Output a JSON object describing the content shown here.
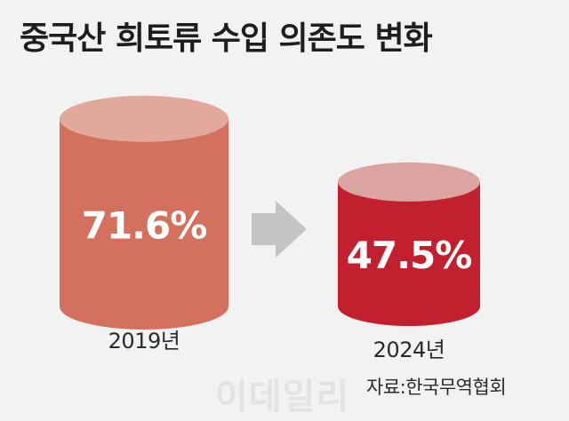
{
  "title": "중국산 희토류 수입 의존도 변화",
  "source": "자료:한국무역협회",
  "watermark": "이데일리",
  "colors": {
    "background": "#f2f2f2",
    "bar_2019_body": "#d4705e",
    "bar_2019_top": "#e3a89c",
    "bar_2024_body": "#c2202f",
    "bar_2024_top": "#dca4a0",
    "arrow": "#c4c4c4"
  },
  "chart_data": {
    "type": "bar",
    "style": "3d-cylinder",
    "categories": [
      "2019년",
      "2024년"
    ],
    "values": [
      71.6,
      47.5
    ],
    "value_labels": [
      "71.6%",
      "47.5%"
    ],
    "unit": "%",
    "title": "중국산 희토류 수입 의존도 변화",
    "xlabel": "",
    "ylabel": "",
    "grid": false,
    "annotation": "arrow pointing from 2019 to 2024"
  }
}
